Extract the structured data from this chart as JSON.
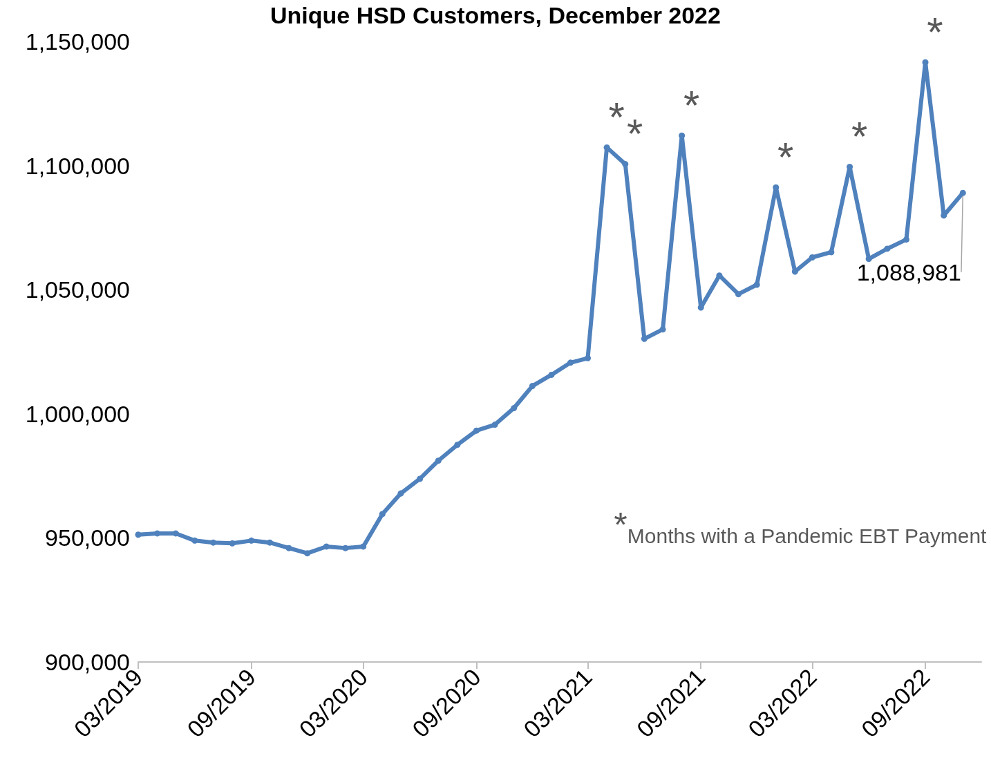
{
  "chart_data": {
    "type": "line",
    "title": "Unique HSD Customers, December 2022",
    "x": [
      "2019-03",
      "2019-04",
      "2019-05",
      "2019-06",
      "2019-07",
      "2019-08",
      "2019-09",
      "2019-10",
      "2019-11",
      "2019-12",
      "2020-01",
      "2020-02",
      "2020-03",
      "2020-04",
      "2020-05",
      "2020-06",
      "2020-07",
      "2020-08",
      "2020-09",
      "2020-10",
      "2020-11",
      "2020-12",
      "2021-01",
      "2021-02",
      "2021-03",
      "2021-04",
      "2021-05",
      "2021-06",
      "2021-07",
      "2021-08",
      "2021-09",
      "2021-10",
      "2021-11",
      "2021-12",
      "2022-01",
      "2022-02",
      "2022-03",
      "2022-04",
      "2022-05",
      "2022-06",
      "2022-07",
      "2022-08",
      "2022-09",
      "2022-10",
      "2022-11"
    ],
    "series": [
      {
        "color": "#4f81bd",
        "values": [
          951300,
          951800,
          951800,
          948900,
          948100,
          947800,
          948900,
          948100,
          945900,
          943800,
          946500,
          945900,
          946500,
          959600,
          967900,
          973800,
          981100,
          987500,
          993200,
          995600,
          1002300,
          1011200,
          1015700,
          1020600,
          1022400,
          1107300,
          1100600,
          1030200,
          1034000,
          1112100,
          1042800,
          1055700,
          1048200,
          1052000,
          1091200,
          1057300,
          1063000,
          1065100,
          1099500,
          1062400,
          1066500,
          1070200,
          1141600,
          1079900,
          1088981
        ],
        "value_labels": [
          null,
          null,
          null,
          null,
          null,
          null,
          null,
          null,
          null,
          null,
          null,
          null,
          null,
          null,
          null,
          null,
          null,
          null,
          null,
          null,
          null,
          null,
          null,
          null,
          null,
          null,
          null,
          null,
          null,
          null,
          null,
          null,
          null,
          null,
          null,
          null,
          null,
          null,
          null,
          null,
          null,
          null,
          null,
          null,
          "1,088,981"
        ]
      }
    ],
    "xlim": [
      "2019-03",
      "2022-12"
    ],
    "xticks": [
      {
        "value": "2019-03",
        "label": "03/2019"
      },
      {
        "value": "2019-09",
        "label": "09/2019"
      },
      {
        "value": "2020-03",
        "label": "03/2020"
      },
      {
        "value": "2020-09",
        "label": "09/2020"
      },
      {
        "value": "2021-03",
        "label": "03/2021"
      },
      {
        "value": "2021-09",
        "label": "09/2021"
      },
      {
        "value": "2022-03",
        "label": "03/2022"
      },
      {
        "value": "2022-09",
        "label": "09/2022"
      }
    ],
    "ylim": [
      900000,
      1150000
    ],
    "yticks": [
      {
        "value": 900000,
        "label": "900,000"
      },
      {
        "value": 950000,
        "label": "950,000"
      },
      {
        "value": 1000000,
        "label": "1,000,000"
      },
      {
        "value": 1050000,
        "label": "1,050,000"
      },
      {
        "value": 1100000,
        "label": "1,100,000"
      },
      {
        "value": 1150000,
        "label": "1,150,000"
      }
    ],
    "marker": "circle",
    "line_style": "solid",
    "annotations": [
      {
        "text": "*",
        "x": "2021-04",
        "y": 1107300
      },
      {
        "text": "*",
        "x": "2021-05",
        "y": 1100600
      },
      {
        "text": "*",
        "x": "2021-08",
        "y": 1112100
      },
      {
        "text": "*",
        "x": "2022-01",
        "y": 1091200
      },
      {
        "text": "*",
        "x": "2022-05",
        "y": 1099500
      },
      {
        "text": "*",
        "x": "2022-09",
        "y": 1141600
      },
      "*Months with a Pandemic EBT Payment"
    ]
  }
}
